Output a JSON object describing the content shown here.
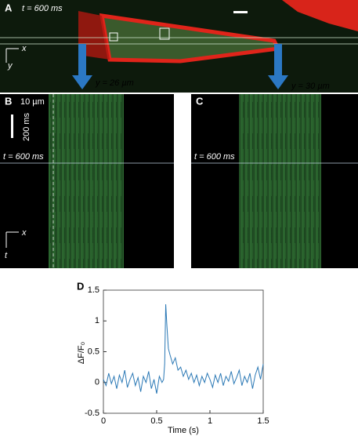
{
  "panel_a": {
    "label": "A",
    "time": "t = 600 ms",
    "axis_x": "x",
    "axis_y": "y"
  },
  "arrows": [
    {
      "label": "y = 26 µm"
    },
    {
      "label": "y = 30 µm"
    }
  ],
  "panel_b": {
    "label": "B",
    "scale_x": "10 µm",
    "scale_t": "200 ms",
    "time": "t = 600 ms",
    "axis_x": "x",
    "axis_t": "t"
  },
  "panel_c": {
    "label": "C",
    "time": "t = 600 ms"
  },
  "chart_data": {
    "type": "line",
    "panel_label": "D",
    "x_label": "Time (s)",
    "y_label": "ΔF/F₀",
    "color": "#2a78b5",
    "x": [
      0,
      0.025,
      0.05,
      0.075,
      0.1,
      0.125,
      0.15,
      0.175,
      0.2,
      0.225,
      0.25,
      0.275,
      0.3,
      0.325,
      0.35,
      0.375,
      0.4,
      0.425,
      0.45,
      0.475,
      0.5,
      0.525,
      0.55,
      0.565,
      0.575,
      0.585,
      0.595,
      0.61,
      0.625,
      0.65,
      0.675,
      0.7,
      0.725,
      0.75,
      0.775,
      0.8,
      0.825,
      0.85,
      0.875,
      0.9,
      0.925,
      0.95,
      0.975,
      1.0,
      1.025,
      1.05,
      1.075,
      1.1,
      1.125,
      1.15,
      1.175,
      1.2,
      1.225,
      1.25,
      1.275,
      1.3,
      1.325,
      1.35,
      1.375,
      1.4,
      1.425,
      1.45,
      1.475,
      1.5
    ],
    "values": [
      0.05,
      -0.05,
      0.15,
      -0.02,
      0.1,
      -0.1,
      0.12,
      0.0,
      0.2,
      -0.08,
      0.05,
      0.15,
      -0.05,
      0.08,
      -0.15,
      0.1,
      0.0,
      0.18,
      -0.1,
      0.05,
      -0.18,
      0.1,
      0.0,
      0.05,
      0.3,
      1.27,
      0.95,
      0.55,
      0.45,
      0.3,
      0.4,
      0.2,
      0.25,
      0.1,
      0.2,
      0.05,
      0.15,
      0.0,
      0.12,
      -0.05,
      0.1,
      0.0,
      0.15,
      0.05,
      -0.08,
      0.12,
      0.0,
      0.15,
      -0.05,
      0.1,
      0.02,
      0.18,
      -0.02,
      0.08,
      0.2,
      -0.05,
      0.1,
      0.0,
      0.15,
      -0.1,
      0.12,
      0.25,
      0.05,
      0.3
    ],
    "xlim": [
      0,
      1.5
    ],
    "xticks": [
      0,
      0.5,
      1,
      1.5
    ],
    "ylim": [
      -0.5,
      1.5
    ],
    "yticks": [
      -0.5,
      0,
      0.5,
      1,
      1.5
    ]
  }
}
